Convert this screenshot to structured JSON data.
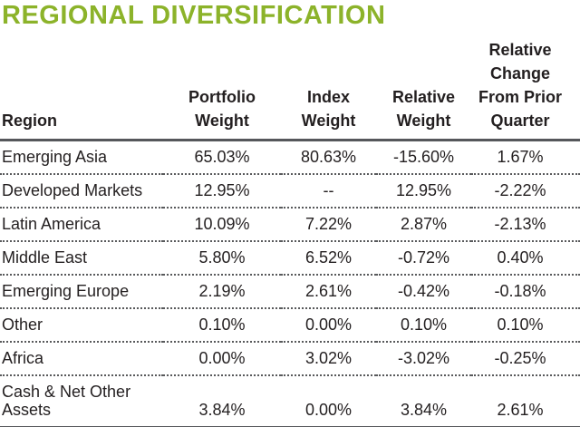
{
  "page": {
    "title": "REGIONAL DIVERSIFICATION"
  },
  "colors": {
    "title_green": "#8CB32A",
    "rule_gray": "#55575B",
    "dotted_separator_gray": "#58595B",
    "text_dark": "#231F20"
  },
  "table": {
    "columns": [
      "Region",
      "Portfolio\nWeight",
      "Index\nWeight",
      "Relative\nWeight",
      "Relative\nChange\nFrom Prior\nQuarter"
    ],
    "rows": [
      [
        "Emerging Asia",
        "65.03%",
        "80.63%",
        "-15.60%",
        "1.67%"
      ],
      [
        "Developed Markets",
        "12.95%",
        "--",
        "12.95%",
        "-2.22%"
      ],
      [
        "Latin America",
        "10.09%",
        "7.22%",
        "2.87%",
        "-2.13%"
      ],
      [
        "Middle East",
        "5.80%",
        "6.52%",
        "-0.72%",
        "0.40%"
      ],
      [
        "Emerging Europe",
        "2.19%",
        "2.61%",
        "-0.42%",
        "-0.18%"
      ],
      [
        "Other",
        "0.10%",
        "0.00%",
        "0.10%",
        "0.10%"
      ],
      [
        "Africa",
        "0.00%",
        "3.02%",
        "-3.02%",
        "-0.25%"
      ],
      [
        "Cash & Net Other Assets",
        "3.84%",
        "0.00%",
        "3.84%",
        "2.61%"
      ]
    ]
  }
}
